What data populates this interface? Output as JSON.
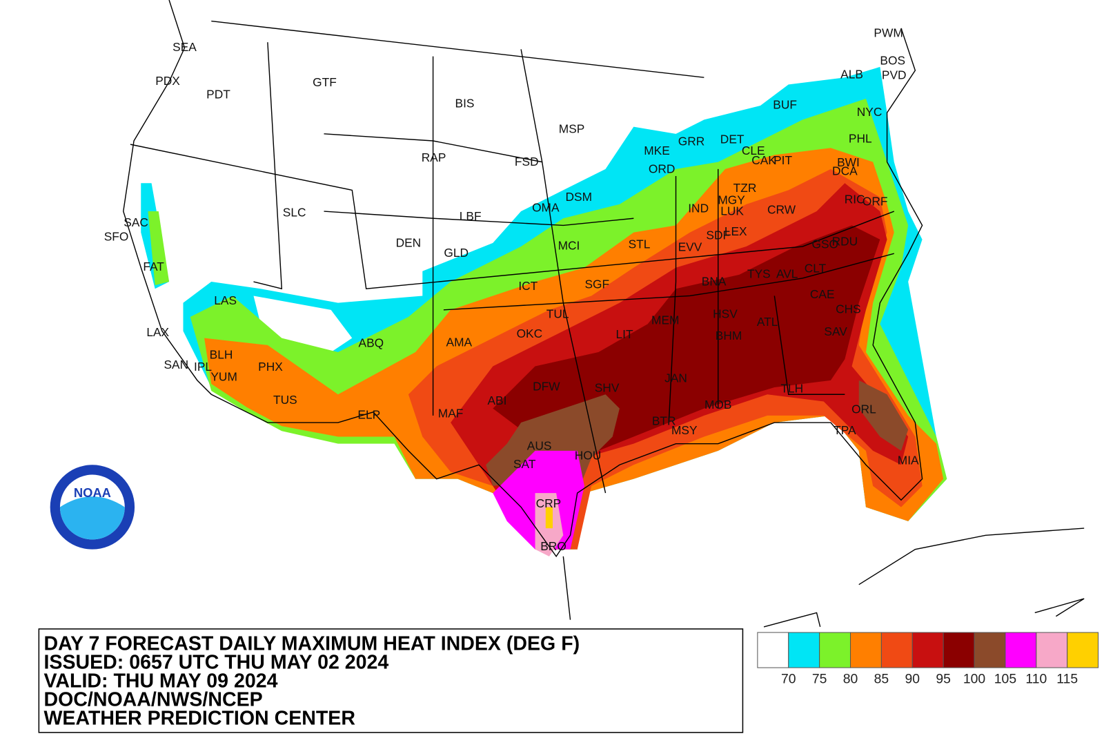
{
  "title_block": {
    "lines": [
      "DAY 7 FORECAST DAILY MAXIMUM HEAT INDEX (DEG F)",
      "ISSUED: 0657 UTC THU MAY 02 2024",
      "VALID: THU MAY 09 2024",
      "DOC/NOAA/NWS/NCEP",
      "WEATHER PREDICTION CENTER"
    ]
  },
  "logo": "NOAA",
  "legend": {
    "colors": [
      "#ffffff",
      "#00e5f5",
      "#7cf22a",
      "#ff7f00",
      "#f04a14",
      "#c81010",
      "#8b0000",
      "#8b4a2a",
      "#ff00ff",
      "#f7a8c8",
      "#ffd000"
    ],
    "labels": [
      "70",
      "75",
      "80",
      "85",
      "90",
      "95",
      "100",
      "105",
      "110",
      "115"
    ]
  },
  "stations": [
    "SEA",
    "PDX",
    "PDT",
    "GTF",
    "BIS",
    "MSP",
    "RAP",
    "FSD",
    "SLC",
    "SAC",
    "SFO",
    "FAT",
    "DEN",
    "LBF",
    "GLD",
    "OMA",
    "DSM",
    "MCI",
    "ICT",
    "SGF",
    "LAS",
    "LAX",
    "SAN",
    "IPL",
    "BLH",
    "YUM",
    "PHX",
    "TUS",
    "ABQ",
    "AMA",
    "ELP",
    "MAF",
    "ABI",
    "DFW",
    "OKC",
    "TUL",
    "LIT",
    "SHV",
    "MEM",
    "AUS",
    "SAT",
    "HOU",
    "CRP",
    "BRO",
    "BTR",
    "MSY",
    "MOB",
    "JAN",
    "BHM",
    "HSV",
    "ATL",
    "BNA",
    "TYS",
    "AVL",
    "CLT",
    "CAE",
    "CHS",
    "SAV",
    "TLH",
    "ORL",
    "TPA",
    "MIA",
    "EVV",
    "SDF",
    "LEX",
    "IND",
    "LUK",
    "MGY",
    "TZR",
    "CRW",
    "STL",
    "GSO",
    "RDU",
    "RIC",
    "ORF",
    "DCA",
    "BWI",
    "PHL",
    "NYC",
    "PIT",
    "CAK",
    "CLE",
    "DET",
    "GRR",
    "MKE",
    "ORD",
    "BUF",
    "ALB",
    "BOS",
    "PVD",
    "PWM"
  ]
}
